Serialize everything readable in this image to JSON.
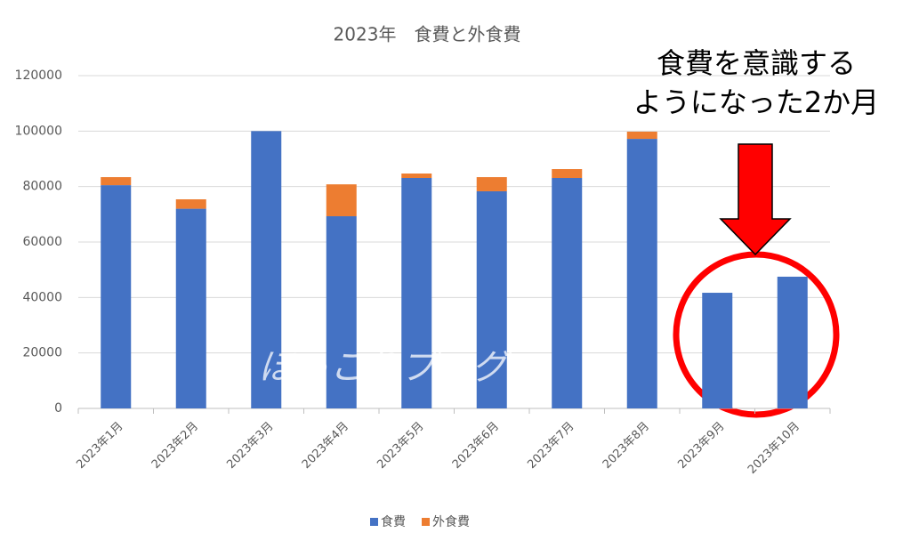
{
  "chart_data": {
    "type": "stacked_bar",
    "title": "2023年　食費と外食費",
    "categories": [
      "2023年1月",
      "2023年2月",
      "2023年3月",
      "2023年4月",
      "2023年5月",
      "2023年6月",
      "2023年7月",
      "2023年8月",
      "2023年9月",
      "2023年10月"
    ],
    "series": [
      {
        "name": "食費",
        "color": "#4472c4",
        "values": [
          80500,
          72000,
          100000,
          69300,
          83100,
          78300,
          83100,
          97200,
          41700,
          47500
        ]
      },
      {
        "name": "外食費",
        "color": "#ed7d31",
        "values": [
          2900,
          3400,
          0,
          11500,
          1600,
          5100,
          3200,
          2600,
          0,
          0
        ]
      }
    ],
    "ylim": [
      0,
      120000
    ],
    "yticks": [
      0,
      20000,
      40000,
      60000,
      80000,
      100000,
      120000
    ],
    "grid": true,
    "annotations": [
      "食費を意識する",
      "ようになった2か月"
    ],
    "watermark": "ほっこりブログ"
  }
}
